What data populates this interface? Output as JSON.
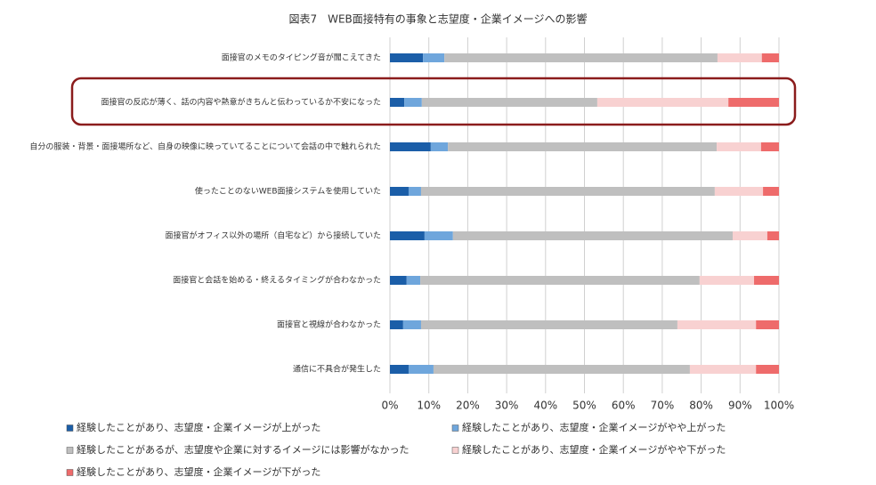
{
  "chart_data": {
    "type": "bar",
    "orientation": "horizontal",
    "stacked": true,
    "title": "図表7　WEB面接特有の事象と志望度・企業イメージへの影響",
    "categories": [
      "面接官のメモのタイピング音が聞こえてきた",
      "面接官の反応が薄く、話の内容や熱意がきちんと伝わっているか不安になった",
      "自分の服装・背景・面接場所など、自身の映像に映っていてることについて会話の中で触れられた",
      "使ったことのないWEB面接システムを使用していた",
      "面接官がオフィス以外の場所（自宅など）から接続していた",
      "面接官と会話を始める・終えるタイミングが合わなかった",
      "面接官と視線が合わなかった",
      "通信に不具合が発生した"
    ],
    "series": [
      {
        "name": "経験したことがあり、志望度・企業イメージが上がった",
        "color": "#1b5ea8",
        "values": [
          8.5,
          3.7,
          10.5,
          4.8,
          8.9,
          4.3,
          3.4,
          4.8
        ]
      },
      {
        "name": "経験したことがあり、志望度・企業イメージがやや上がった",
        "color": "#6fa6dc",
        "values": [
          5.5,
          4.5,
          4.4,
          3.2,
          7.3,
          3.5,
          4.6,
          6.4
        ]
      },
      {
        "name": "経験したことがあるが、志望度や企業に対するイメージには影響がなかった",
        "color": "#bfbfbf",
        "values": [
          70.2,
          45.1,
          69.1,
          75.5,
          71.9,
          71.8,
          65.9,
          65.9
        ]
      },
      {
        "name": "経験したことがあり、志望度・企業イメージがやや下がった",
        "color": "#f8d1d1",
        "values": [
          11.4,
          33.7,
          11.4,
          12.4,
          8.9,
          14.0,
          20.2,
          17.0
        ]
      },
      {
        "name": "経験したことがあり、志望度・企業イメージが下がった",
        "color": "#ee6b6b",
        "values": [
          4.4,
          13.0,
          4.6,
          4.1,
          3.0,
          6.4,
          5.9,
          5.9
        ]
      }
    ],
    "xlim": [
      0,
      100
    ],
    "xticks": [
      {
        "value": 0,
        "label": "0%"
      },
      {
        "value": 10,
        "label": "10%"
      },
      {
        "value": 20,
        "label": "20%"
      },
      {
        "value": 30,
        "label": "30%"
      },
      {
        "value": 40,
        "label": "40%"
      },
      {
        "value": 50,
        "label": "50%"
      },
      {
        "value": 60,
        "label": "60%"
      },
      {
        "value": 70,
        "label": "70%"
      },
      {
        "value": 80,
        "label": "80%"
      },
      {
        "value": 90,
        "label": "90%"
      },
      {
        "value": 100,
        "label": "100%"
      }
    ],
    "grid": true
  }
}
